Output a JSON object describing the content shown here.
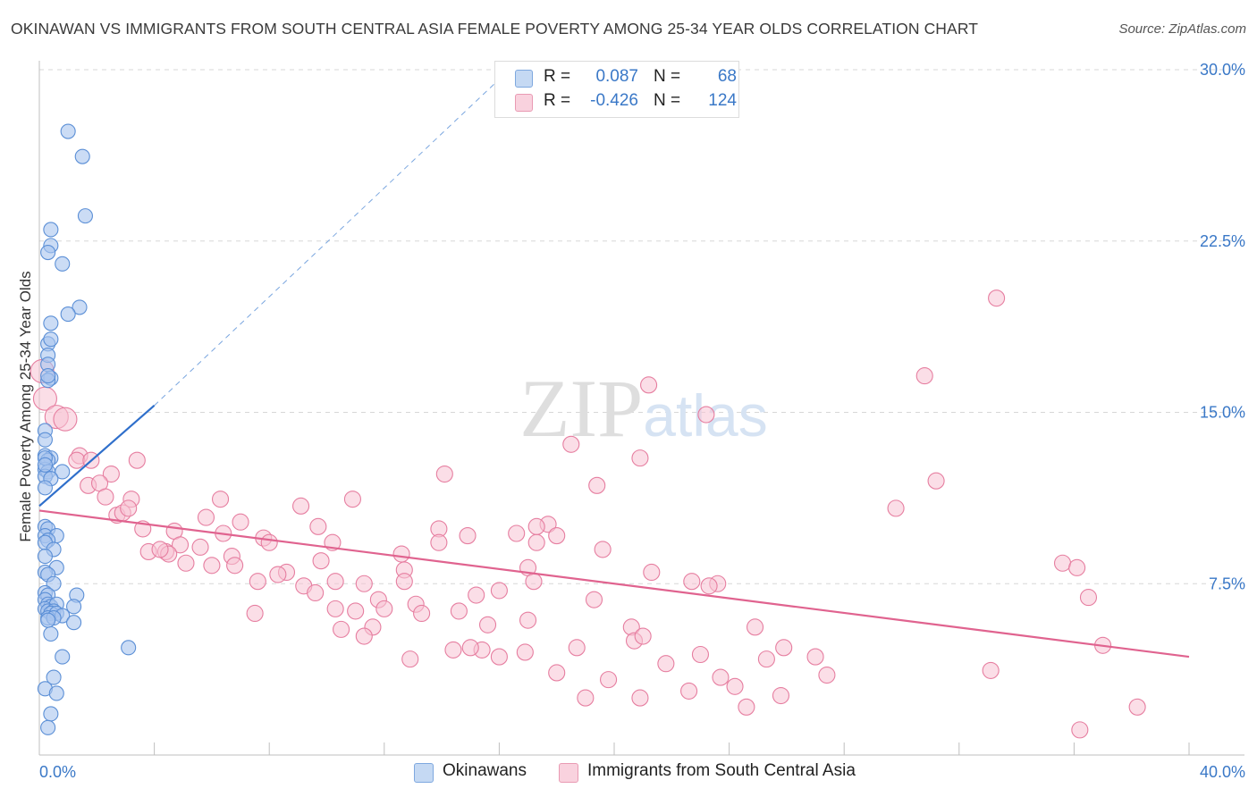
{
  "title": "OKINAWAN VS IMMIGRANTS FROM SOUTH CENTRAL ASIA FEMALE POVERTY AMONG 25-34 YEAR OLDS CORRELATION CHART",
  "source": "Source: ZipAtlas.com",
  "colors": {
    "blue": "#5b8fd6",
    "blue_fill": "#a9c5ee",
    "pink": "#e67ea0",
    "pink_fill": "#f7c3d3",
    "axis_text": "#3a78c7"
  },
  "legend": {
    "rows": [
      {
        "label": "R =",
        "r": "0.087",
        "n_label": "N =",
        "n": "68"
      },
      {
        "label": "R =",
        "r": "-0.426",
        "n_label": "N =",
        "n": "124"
      }
    ]
  },
  "bottom_legend": {
    "series1": "Okinawans",
    "series2": "Immigrants from South Central Asia"
  },
  "chart_data": {
    "type": "scatter",
    "title": "OKINAWAN VS IMMIGRANTS FROM SOUTH CENTRAL ASIA FEMALE POVERTY AMONG 25-34 YEAR OLDS CORRELATION CHART",
    "ylabel": "Female Poverty Among 25-34 Year Olds",
    "xlabel": "",
    "x_range": [
      0,
      40
    ],
    "y_range": [
      0,
      30
    ],
    "x_tick_labels": [
      "0.0%",
      "40.0%"
    ],
    "y_tick_labels": [
      "7.5%",
      "15.0%",
      "22.5%",
      "30.0%"
    ],
    "y_ticks": [
      7.5,
      15,
      22.5,
      30
    ],
    "watermark": "ZIPatlas",
    "series": [
      {
        "name": "Okinawans",
        "r": 0.087,
        "n": 68,
        "trend": {
          "x": [
            0,
            4
          ],
          "y": [
            10.9,
            15.3
          ],
          "dashed_to": [
            16.1,
            29.7
          ]
        },
        "points": [
          [
            1.0,
            27.3
          ],
          [
            1.5,
            26.2
          ],
          [
            1.6,
            23.6
          ],
          [
            0.4,
            23.0
          ],
          [
            0.4,
            22.3
          ],
          [
            0.3,
            22.0
          ],
          [
            0.8,
            21.5
          ],
          [
            1.4,
            19.6
          ],
          [
            1.0,
            19.3
          ],
          [
            0.4,
            18.9
          ],
          [
            0.3,
            18.0
          ],
          [
            0.4,
            18.2
          ],
          [
            0.3,
            17.5
          ],
          [
            0.3,
            17.1
          ],
          [
            0.4,
            16.5
          ],
          [
            0.3,
            16.4
          ],
          [
            0.2,
            14.2
          ],
          [
            0.2,
            13.8
          ],
          [
            0.2,
            13.1
          ],
          [
            0.4,
            13.0
          ],
          [
            0.3,
            12.9
          ],
          [
            0.2,
            12.5
          ],
          [
            0.3,
            12.4
          ],
          [
            0.8,
            12.4
          ],
          [
            0.2,
            12.2
          ],
          [
            0.4,
            12.1
          ],
          [
            0.2,
            11.7
          ],
          [
            0.2,
            10.0
          ],
          [
            0.3,
            9.9
          ],
          [
            0.2,
            9.6
          ],
          [
            0.6,
            9.6
          ],
          [
            0.3,
            9.4
          ],
          [
            0.2,
            9.3
          ],
          [
            0.5,
            9.0
          ],
          [
            0.2,
            8.7
          ],
          [
            0.6,
            8.2
          ],
          [
            0.2,
            8.0
          ],
          [
            0.3,
            7.9
          ],
          [
            0.5,
            7.5
          ],
          [
            0.2,
            7.1
          ],
          [
            0.3,
            7.0
          ],
          [
            1.3,
            7.0
          ],
          [
            0.2,
            6.8
          ],
          [
            0.3,
            6.6
          ],
          [
            0.4,
            6.5
          ],
          [
            0.6,
            6.6
          ],
          [
            1.2,
            6.5
          ],
          [
            0.2,
            6.4
          ],
          [
            0.3,
            6.3
          ],
          [
            0.5,
            6.3
          ],
          [
            0.4,
            6.2
          ],
          [
            0.6,
            6.2
          ],
          [
            0.8,
            6.1
          ],
          [
            0.3,
            6.0
          ],
          [
            0.5,
            6.0
          ],
          [
            0.3,
            5.9
          ],
          [
            1.2,
            5.8
          ],
          [
            0.4,
            5.3
          ],
          [
            3.1,
            4.7
          ],
          [
            0.8,
            4.3
          ],
          [
            0.5,
            3.4
          ],
          [
            0.2,
            2.9
          ],
          [
            0.6,
            2.7
          ],
          [
            0.4,
            1.8
          ],
          [
            0.3,
            1.2
          ],
          [
            0.2,
            13.0
          ],
          [
            0.3,
            16.6
          ],
          [
            0.2,
            12.7
          ]
        ]
      },
      {
        "name": "Immigrants from South Central Asia",
        "r": -0.426,
        "n": 124,
        "trend": {
          "x": [
            0,
            40
          ],
          "y": [
            10.7,
            4.3
          ]
        },
        "points": [
          [
            33.3,
            20.0
          ],
          [
            30.8,
            16.6
          ],
          [
            21.2,
            16.2
          ],
          [
            23.2,
            14.9
          ],
          [
            0.1,
            16.8
          ],
          [
            0.2,
            15.6
          ],
          [
            0.6,
            14.8
          ],
          [
            0.9,
            14.7
          ],
          [
            1.4,
            13.1
          ],
          [
            1.3,
            12.9
          ],
          [
            1.8,
            12.9
          ],
          [
            3.4,
            12.9
          ],
          [
            18.5,
            13.6
          ],
          [
            20.9,
            13.0
          ],
          [
            14.1,
            12.3
          ],
          [
            2.5,
            12.3
          ],
          [
            31.2,
            12.0
          ],
          [
            1.7,
            11.8
          ],
          [
            2.1,
            11.9
          ],
          [
            19.4,
            11.8
          ],
          [
            2.3,
            11.3
          ],
          [
            3.2,
            11.2
          ],
          [
            6.3,
            11.2
          ],
          [
            10.9,
            11.2
          ],
          [
            9.1,
            10.9
          ],
          [
            29.8,
            10.8
          ],
          [
            2.7,
            10.5
          ],
          [
            2.9,
            10.6
          ],
          [
            5.8,
            10.4
          ],
          [
            7.0,
            10.2
          ],
          [
            9.7,
            10.0
          ],
          [
            17.7,
            10.1
          ],
          [
            13.9,
            9.9
          ],
          [
            3.6,
            9.9
          ],
          [
            4.7,
            9.8
          ],
          [
            6.4,
            9.7
          ],
          [
            16.6,
            9.7
          ],
          [
            18.0,
            9.6
          ],
          [
            14.9,
            9.6
          ],
          [
            7.8,
            9.5
          ],
          [
            10.2,
            9.3
          ],
          [
            8.0,
            9.3
          ],
          [
            17.3,
            9.3
          ],
          [
            4.9,
            9.2
          ],
          [
            5.6,
            9.1
          ],
          [
            19.6,
            9.0
          ],
          [
            3.8,
            8.9
          ],
          [
            4.4,
            8.9
          ],
          [
            4.5,
            8.8
          ],
          [
            12.6,
            8.8
          ],
          [
            6.7,
            8.7
          ],
          [
            9.8,
            8.5
          ],
          [
            5.1,
            8.4
          ],
          [
            6.0,
            8.3
          ],
          [
            6.8,
            8.3
          ],
          [
            35.6,
            8.4
          ],
          [
            36.1,
            8.2
          ],
          [
            12.7,
            8.1
          ],
          [
            17.0,
            8.2
          ],
          [
            21.3,
            8.0
          ],
          [
            8.6,
            8.0
          ],
          [
            8.3,
            7.9
          ],
          [
            7.6,
            7.6
          ],
          [
            10.3,
            7.6
          ],
          [
            11.3,
            7.5
          ],
          [
            12.7,
            7.6
          ],
          [
            17.2,
            7.6
          ],
          [
            22.7,
            7.6
          ],
          [
            23.6,
            7.5
          ],
          [
            23.3,
            7.4
          ],
          [
            9.2,
            7.4
          ],
          [
            15.2,
            7.0
          ],
          [
            11.8,
            6.8
          ],
          [
            16.0,
            7.2
          ],
          [
            36.5,
            6.9
          ],
          [
            19.3,
            6.8
          ],
          [
            13.1,
            6.6
          ],
          [
            12.0,
            6.4
          ],
          [
            10.3,
            6.4
          ],
          [
            11.0,
            6.3
          ],
          [
            14.6,
            6.3
          ],
          [
            13.3,
            6.2
          ],
          [
            7.5,
            6.2
          ],
          [
            17.0,
            5.9
          ],
          [
            15.6,
            5.7
          ],
          [
            20.6,
            5.6
          ],
          [
            24.9,
            5.6
          ],
          [
            10.5,
            5.5
          ],
          [
            11.6,
            5.6
          ],
          [
            11.3,
            5.2
          ],
          [
            20.7,
            5.0
          ],
          [
            15.4,
            4.6
          ],
          [
            18.7,
            4.7
          ],
          [
            14.4,
            4.6
          ],
          [
            25.9,
            4.7
          ],
          [
            23.0,
            4.4
          ],
          [
            21.8,
            4.0
          ],
          [
            27.0,
            4.3
          ],
          [
            25.3,
            4.2
          ],
          [
            16.0,
            4.3
          ],
          [
            12.9,
            4.2
          ],
          [
            33.1,
            3.7
          ],
          [
            27.4,
            3.5
          ],
          [
            19.8,
            3.3
          ],
          [
            18.0,
            3.6
          ],
          [
            23.7,
            3.4
          ],
          [
            24.2,
            3.0
          ],
          [
            22.6,
            2.8
          ],
          [
            25.8,
            2.6
          ],
          [
            20.9,
            2.5
          ],
          [
            24.6,
            2.1
          ],
          [
            38.2,
            2.1
          ],
          [
            19.0,
            2.5
          ],
          [
            36.2,
            1.1
          ],
          [
            37.0,
            4.8
          ],
          [
            17.3,
            10.0
          ],
          [
            9.6,
            7.1
          ],
          [
            15.0,
            4.7
          ],
          [
            16.9,
            4.5
          ],
          [
            21.0,
            5.2
          ],
          [
            4.2,
            9.0
          ],
          [
            13.9,
            9.3
          ],
          [
            3.1,
            10.8
          ]
        ]
      }
    ]
  }
}
